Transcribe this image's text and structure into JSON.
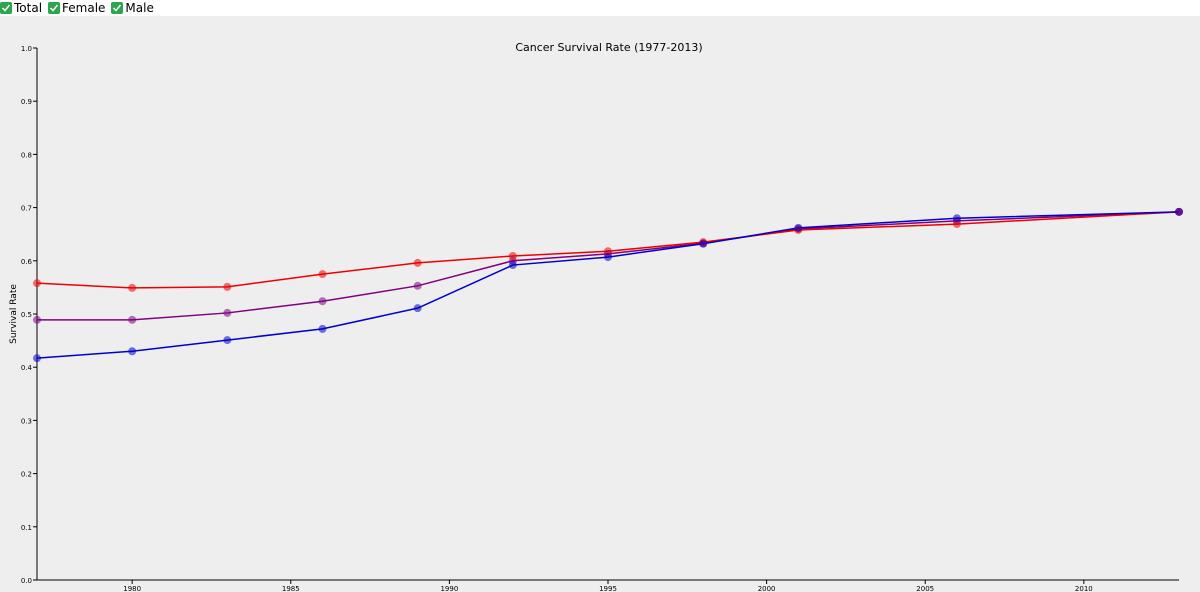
{
  "chart_data": {
    "type": "line",
    "title": "Cancer Survival Rate (1977-2013)",
    "y_label": "Survival Rate",
    "x": [
      1977,
      1980,
      1983,
      1986,
      1989,
      1992,
      1995,
      1998,
      2001,
      2006,
      2013
    ],
    "series": [
      {
        "name": "Total",
        "color": "#800080",
        "values": [
          0.489,
          0.489,
          0.502,
          0.524,
          0.553,
          0.6,
          0.613,
          0.633,
          0.66,
          0.675,
          0.692
        ]
      },
      {
        "name": "Female",
        "color": "#ee0000",
        "values": [
          0.558,
          0.549,
          0.551,
          0.575,
          0.596,
          0.609,
          0.618,
          0.635,
          0.658,
          0.669,
          0.692
        ]
      },
      {
        "name": "Male",
        "color": "#0000cc",
        "values": [
          0.417,
          0.43,
          0.451,
          0.472,
          0.511,
          0.592,
          0.607,
          0.632,
          0.662,
          0.68,
          0.692
        ]
      }
    ],
    "xlim": [
      1977,
      2013
    ],
    "xticks": [
      1980,
      1985,
      1990,
      1995,
      2000,
      2005,
      2010
    ],
    "ylim": [
      0,
      1
    ],
    "yticks": [
      {
        "value": 0,
        "label": "0.0"
      },
      0.1,
      0.2,
      0.3,
      0.4,
      0.5,
      0.6,
      0.7,
      0.8,
      0.9,
      {
        "value": 1,
        "label": "1.0"
      }
    ]
  }
}
